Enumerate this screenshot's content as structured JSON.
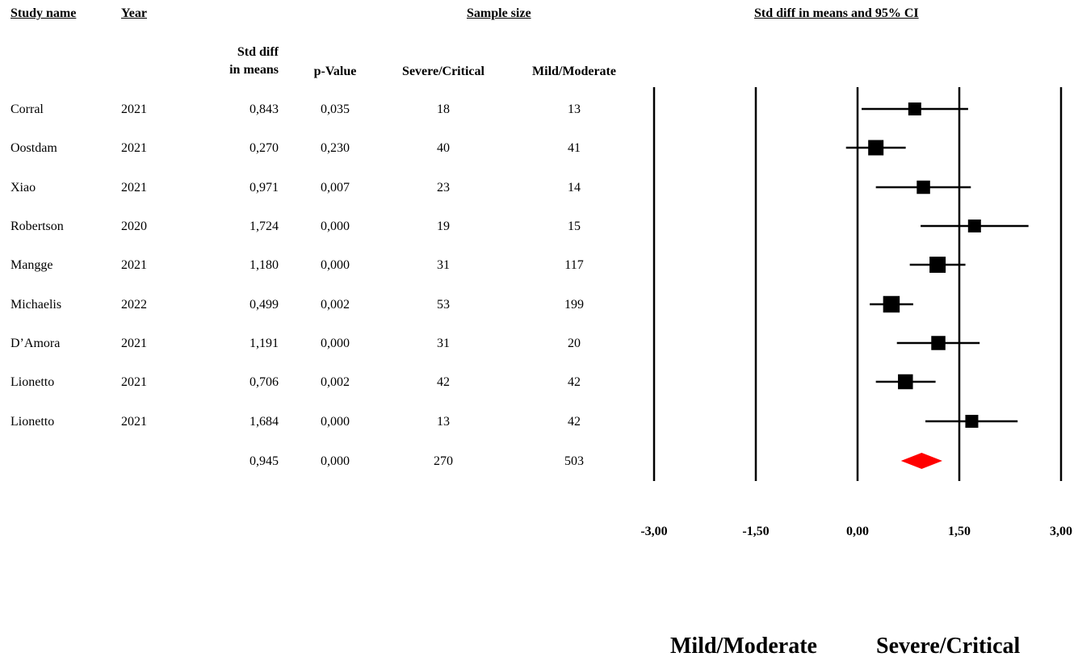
{
  "headers": {
    "study_name": "Study name",
    "year": "Year",
    "sample_size": "Sample size",
    "plot_title": "Std diff in means and 95% CI",
    "std_diff_line1": "Std diff",
    "std_diff_line2": "in means",
    "p_value": "p-Value",
    "severe": "Severe/Critical",
    "mild": "Mild/Moderate"
  },
  "rows": [
    {
      "study": "Corral",
      "year": "2021",
      "std_diff": "0,843",
      "p": "0,035",
      "severe": "18",
      "mild": "13"
    },
    {
      "study": "Oostdam",
      "year": "2021",
      "std_diff": "0,270",
      "p": "0,230",
      "severe": "40",
      "mild": "41"
    },
    {
      "study": "Xiao",
      "year": "2021",
      "std_diff": "0,971",
      "p": "0,007",
      "severe": "23",
      "mild": "14"
    },
    {
      "study": "Robertson",
      "year": "2020",
      "std_diff": "1,724",
      "p": "0,000",
      "severe": "19",
      "mild": "15"
    },
    {
      "study": "Mangge",
      "year": "2021",
      "std_diff": "1,180",
      "p": "0,000",
      "severe": "31",
      "mild": "117"
    },
    {
      "study": "Michaelis",
      "year": "2022",
      "std_diff": "0,499",
      "p": "0,002",
      "severe": "53",
      "mild": "199"
    },
    {
      "study": "D’Amora",
      "year": "2021",
      "std_diff": "1,191",
      "p": "0,000",
      "severe": "31",
      "mild": "20"
    },
    {
      "study": "Lionetto",
      "year": "2021",
      "std_diff": "0,706",
      "p": "0,002",
      "severe": "42",
      "mild": "42"
    },
    {
      "study": "Lionetto",
      "year": "2021",
      "std_diff": "1,684",
      "p": "0,000",
      "severe": "13",
      "mild": "42"
    }
  ],
  "summary": {
    "std_diff": "0,945",
    "p": "0,000",
    "severe": "270",
    "mild": "503"
  },
  "favors": {
    "left": "Mild/Moderate",
    "right": "Severe/Critical"
  },
  "chart_data": {
    "type": "forest",
    "title": "Std diff in means and 95% CI",
    "xlim": [
      -3,
      3
    ],
    "x_ticks": [
      -3,
      -1.5,
      0,
      1.5,
      3
    ],
    "tick_labels": [
      "-3,00",
      "-1,50",
      "0,00",
      "1,50",
      "3,00"
    ],
    "studies": [
      {
        "name": "Corral",
        "estimate": 0.843,
        "lower": 0.06,
        "upper": 1.63,
        "weight": 0.6
      },
      {
        "name": "Oostdam",
        "estimate": 0.27,
        "lower": -0.17,
        "upper": 0.71,
        "weight": 0.9
      },
      {
        "name": "Xiao",
        "estimate": 0.971,
        "lower": 0.27,
        "upper": 1.67,
        "weight": 0.65
      },
      {
        "name": "Robertson",
        "estimate": 1.724,
        "lower": 0.93,
        "upper": 2.52,
        "weight": 0.6
      },
      {
        "name": "Mangge",
        "estimate": 1.18,
        "lower": 0.77,
        "upper": 1.59,
        "weight": 1.0
      },
      {
        "name": "Michaelis",
        "estimate": 0.499,
        "lower": 0.18,
        "upper": 0.82,
        "weight": 1.05
      },
      {
        "name": "D’Amora",
        "estimate": 1.191,
        "lower": 0.58,
        "upper": 1.8,
        "weight": 0.75
      },
      {
        "name": "Lionetto",
        "estimate": 0.706,
        "lower": 0.27,
        "upper": 1.15,
        "weight": 0.85
      },
      {
        "name": "Lionetto",
        "estimate": 1.684,
        "lower": 1.0,
        "upper": 2.36,
        "weight": 0.6
      }
    ],
    "summary": {
      "estimate": 0.945,
      "lower": 0.64,
      "upper": 1.25
    },
    "summary_color": "#ff0000",
    "marker_color": "#000000"
  }
}
